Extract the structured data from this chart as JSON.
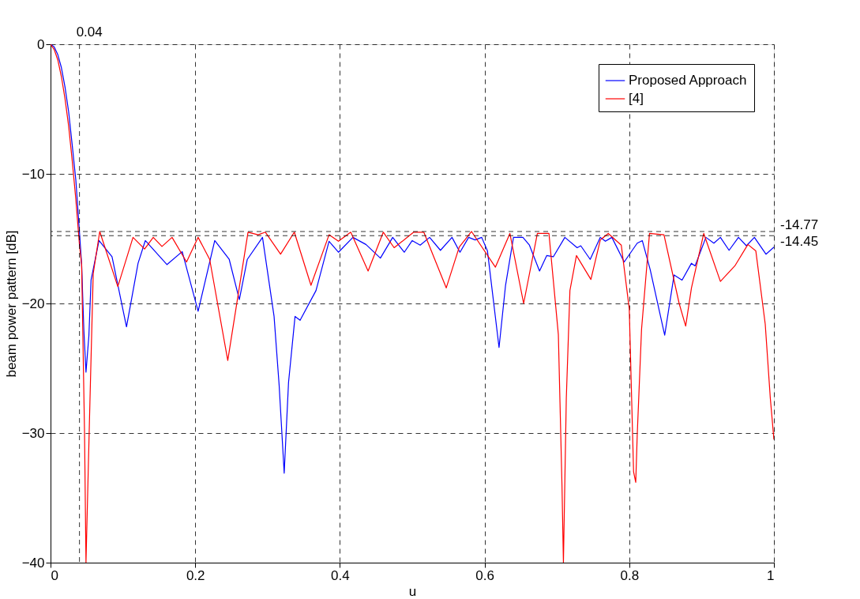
{
  "chart_data": {
    "type": "line",
    "xlabel": "u",
    "ylabel": "beam power pattern [dB]",
    "xlim": [
      0,
      1
    ],
    "ylim": [
      -40,
      0
    ],
    "xticks": [
      0,
      0.2,
      0.4,
      0.6,
      0.8,
      1
    ],
    "yticks": [
      -40,
      -30,
      -20,
      -10,
      0
    ],
    "grid": true,
    "legend": "top right",
    "line_style": "solid",
    "marker": "none",
    "ref_lines": [
      {
        "axis": "y",
        "value": -14.77,
        "label": "-14.77",
        "line_style": "dashed",
        "color": "#000000"
      },
      {
        "axis": "y",
        "value": -14.45,
        "label": "-14.45",
        "line_style": "dashed",
        "color": "#000000"
      },
      {
        "axis": "x",
        "value": 0.04,
        "label": "0.04",
        "line_style": "dashed",
        "color": "#000000"
      }
    ],
    "series": [
      {
        "name": "Proposed Approach",
        "color": "#0000ff",
        "x": [
          0,
          0.005,
          0.01,
          0.015,
          0.02,
          0.025,
          0.03,
          0.035,
          0.04,
          0.043,
          0.046,
          0.049,
          0.053,
          0.056,
          0.067,
          0.085,
          0.105,
          0.121,
          0.131,
          0.161,
          0.182,
          0.204,
          0.227,
          0.247,
          0.261,
          0.272,
          0.293,
          0.309,
          0.316,
          0.323,
          0.329,
          0.338,
          0.345,
          0.367,
          0.385,
          0.398,
          0.418,
          0.436,
          0.456,
          0.473,
          0.489,
          0.5,
          0.511,
          0.524,
          0.539,
          0.555,
          0.566,
          0.578,
          0.587,
          0.596,
          0.604,
          0.62,
          0.629,
          0.64,
          0.653,
          0.662,
          0.676,
          0.686,
          0.695,
          0.711,
          0.728,
          0.733,
          0.746,
          0.76,
          0.767,
          0.776,
          0.793,
          0.811,
          0.818,
          0.829,
          0.849,
          0.862,
          0.873,
          0.886,
          0.891,
          0.906,
          0.917,
          0.926,
          0.938,
          0.951,
          0.962,
          0.973,
          0.989,
          1
        ],
        "values": [
          0,
          -0.2,
          -0.8,
          -1.8,
          -3.3,
          -5.2,
          -7.8,
          -10.5,
          -14.5,
          -17,
          -22,
          -25.3,
          -22.5,
          -18.2,
          -15.15,
          -16.4,
          -21.8,
          -16.9,
          -15.15,
          -17,
          -16,
          -20.6,
          -15.15,
          -16.6,
          -19.7,
          -16.6,
          -14.9,
          -21,
          -26.3,
          -33.1,
          -26.1,
          -21,
          -21.3,
          -19,
          -15.2,
          -16.05,
          -14.9,
          -15.45,
          -16.5,
          -14.9,
          -16.05,
          -15.15,
          -15.5,
          -14.9,
          -15.9,
          -14.9,
          -16.05,
          -14.9,
          -15.1,
          -14.9,
          -15.95,
          -23.4,
          -18.6,
          -14.9,
          -14.9,
          -15.5,
          -17.5,
          -16.3,
          -16.4,
          -14.9,
          -15.7,
          -15.55,
          -16.6,
          -14.9,
          -15.2,
          -14.9,
          -16.8,
          -15.35,
          -15.15,
          -17.4,
          -22.45,
          -17.8,
          -18.2,
          -16.9,
          -17.1,
          -14.9,
          -15.35,
          -14.9,
          -15.9,
          -14.9,
          -15.55,
          -14.9,
          -16.2,
          -15.65
        ]
      },
      {
        "name": "[4]",
        "color": "#ff0000",
        "x": [
          0,
          0.005,
          0.01,
          0.015,
          0.02,
          0.025,
          0.03,
          0.035,
          0.04,
          0.043,
          0.047,
          0.049,
          0.054,
          0.059,
          0.068,
          0.093,
          0.114,
          0.13,
          0.142,
          0.154,
          0.168,
          0.188,
          0.204,
          0.22,
          0.245,
          0.273,
          0.287,
          0.297,
          0.318,
          0.337,
          0.36,
          0.385,
          0.398,
          0.415,
          0.439,
          0.46,
          0.475,
          0.502,
          0.516,
          0.547,
          0.565,
          0.582,
          0.615,
          0.635,
          0.654,
          0.673,
          0.689,
          0.702,
          0.707,
          0.709,
          0.713,
          0.718,
          0.727,
          0.747,
          0.76,
          0.771,
          0.789,
          0.8,
          0.806,
          0.809,
          0.811,
          0.817,
          0.828,
          0.848,
          0.869,
          0.878,
          0.886,
          0.903,
          0.926,
          0.946,
          0.964,
          0.975,
          0.988,
          0.995,
          1
        ],
        "values": [
          0,
          -0.4,
          -1.2,
          -2.5,
          -4.2,
          -6.3,
          -9,
          -12,
          -15.5,
          -17,
          -30,
          -40,
          -28.6,
          -17.7,
          -14.45,
          -18.7,
          -14.9,
          -15.8,
          -14.9,
          -15.6,
          -14.9,
          -16.8,
          -14.9,
          -16.6,
          -24.4,
          -14.5,
          -14.7,
          -14.5,
          -16.2,
          -14.5,
          -18.6,
          -14.7,
          -15.2,
          -14.5,
          -17.5,
          -14.5,
          -15.7,
          -14.5,
          -14.5,
          -18.8,
          -15.65,
          -14.45,
          -17.2,
          -14.6,
          -20,
          -14.6,
          -14.6,
          -22.4,
          -34,
          -40,
          -27.3,
          -19,
          -16.3,
          -18.15,
          -15.1,
          -14.6,
          -15.5,
          -20.4,
          -33,
          -33.8,
          -30.2,
          -22,
          -14.6,
          -14.7,
          -20,
          -21.75,
          -18.8,
          -14.6,
          -18.3,
          -17.1,
          -15.45,
          -15.95,
          -21.6,
          -27.3,
          -30.5
        ]
      }
    ]
  }
}
